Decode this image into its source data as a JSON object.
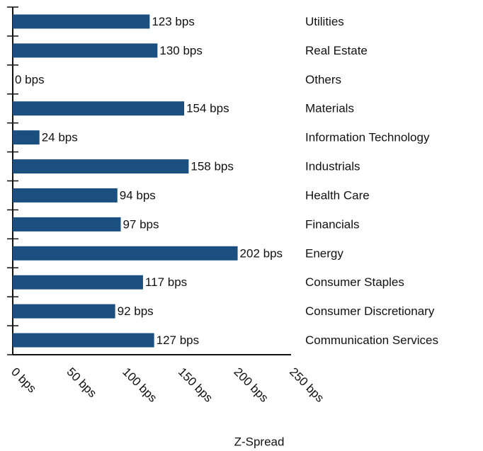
{
  "chart_data": {
    "type": "hbar",
    "x_label": "Z-Spread",
    "categories": [
      "Utilities",
      "Real Estate",
      "Others",
      "Materials",
      "Information Technology",
      "Industrials",
      "Health Care",
      "Financials",
      "Energy",
      "Consumer Staples",
      "Consumer Discretionary",
      "Communication Services"
    ],
    "values": [
      123,
      130,
      0,
      154,
      24,
      158,
      94,
      97,
      202,
      117,
      92,
      127
    ],
    "value_labels": [
      "123 bps",
      "130 bps",
      "0 bps",
      "154 bps",
      "24 bps",
      "158 bps",
      "94 bps",
      "97 bps",
      "202 bps",
      "117 bps",
      "92 bps",
      "127 bps"
    ],
    "color": "#1b4f80",
    "xlim": [
      0,
      250
    ],
    "xticks": [
      {
        "value": 0,
        "label": "0 bps"
      },
      {
        "value": 50,
        "label": "50 bps"
      },
      {
        "value": 100,
        "label": "100 bps"
      },
      {
        "value": 150,
        "label": "150 bps"
      },
      {
        "value": 200,
        "label": "200 bps"
      },
      {
        "value": 250,
        "label": "250 bps"
      }
    ]
  }
}
